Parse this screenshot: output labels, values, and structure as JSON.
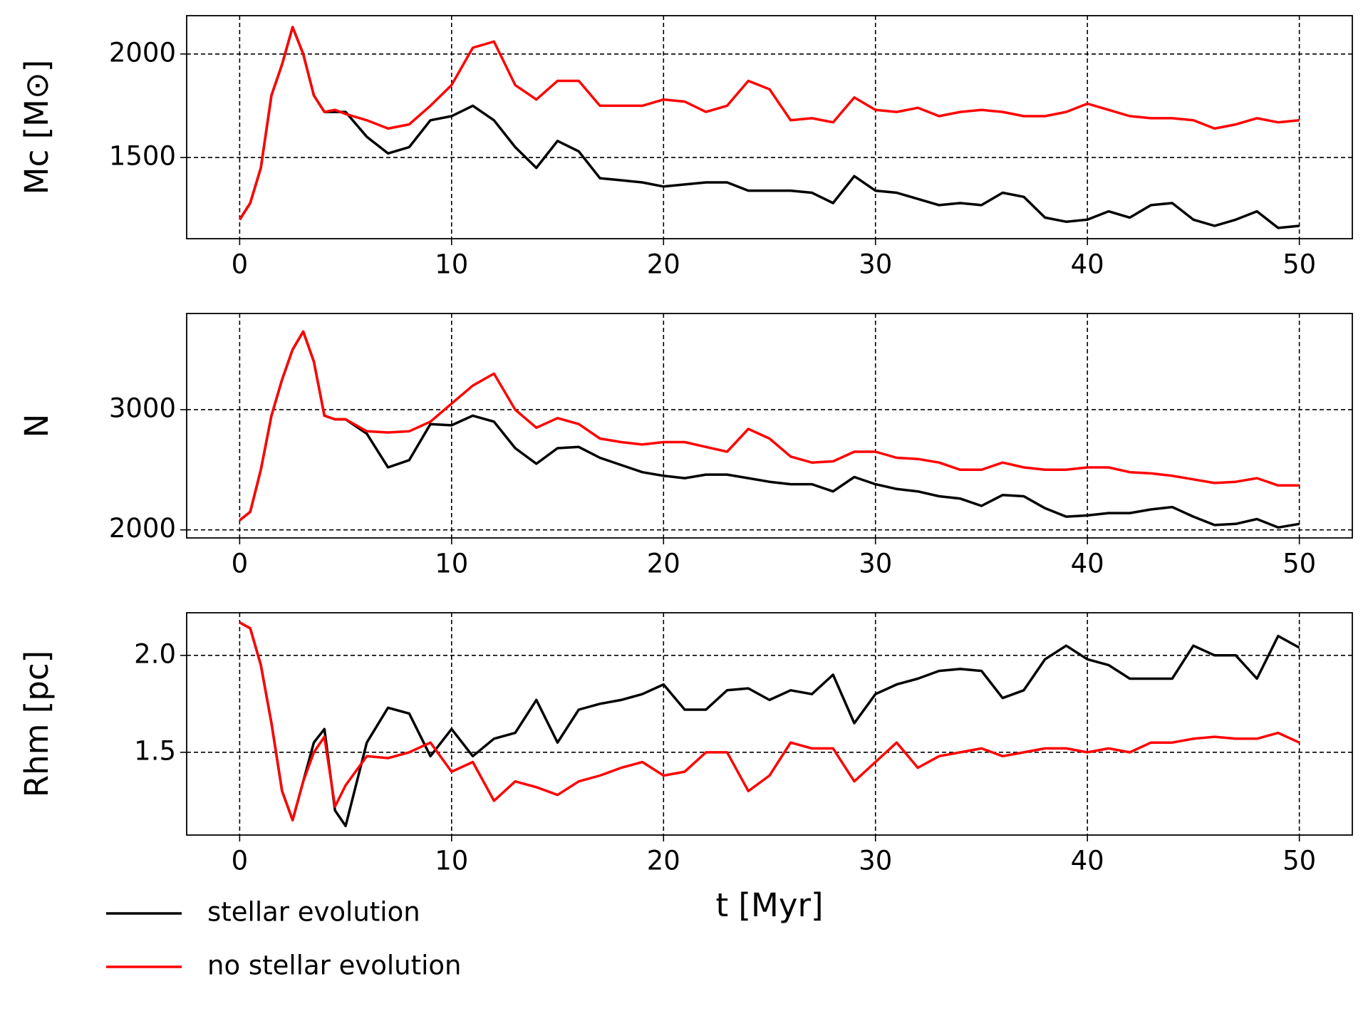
{
  "chart_data": [
    {
      "type": "line",
      "ylabel": "Mc [M⊙]",
      "x": [
        0,
        0.5,
        1,
        1.5,
        2,
        2.5,
        3,
        3.5,
        4,
        4.5,
        5,
        6,
        7,
        8,
        9,
        10,
        11,
        12,
        13,
        14,
        15,
        16,
        17,
        18,
        19,
        20,
        21,
        22,
        23,
        24,
        25,
        26,
        27,
        28,
        29,
        30,
        31,
        32,
        33,
        34,
        35,
        36,
        37,
        38,
        39,
        40,
        41,
        42,
        43,
        44,
        45,
        46,
        47,
        48,
        49,
        50
      ],
      "xlim": [
        -2.5,
        52.5
      ],
      "xticks": [
        0,
        10,
        20,
        30,
        40,
        50
      ],
      "ylim": [
        1108,
        2185
      ],
      "yticks": [
        1500,
        2000
      ],
      "grid": true,
      "series": [
        {
          "color": "#000000",
          "values": [
            1200,
            1280,
            1450,
            1800,
            1950,
            2130,
            2000,
            1800,
            1720,
            1720,
            1720,
            1600,
            1520,
            1550,
            1680,
            1700,
            1750,
            1680,
            1550,
            1450,
            1580,
            1530,
            1400,
            1390,
            1380,
            1360,
            1370,
            1380,
            1380,
            1340,
            1340,
            1340,
            1330,
            1280,
            1410,
            1340,
            1330,
            1300,
            1270,
            1280,
            1270,
            1330,
            1310,
            1210,
            1190,
            1200,
            1240,
            1210,
            1270,
            1280,
            1200,
            1170,
            1200,
            1240,
            1160,
            1170
          ]
        },
        {
          "color": "#ff0000",
          "values": [
            1200,
            1280,
            1450,
            1800,
            1950,
            2130,
            2000,
            1800,
            1720,
            1730,
            1710,
            1680,
            1640,
            1660,
            1750,
            1850,
            2030,
            2060,
            1850,
            1780,
            1870,
            1870,
            1750,
            1750,
            1750,
            1780,
            1770,
            1720,
            1750,
            1870,
            1830,
            1680,
            1690,
            1670,
            1790,
            1730,
            1720,
            1740,
            1700,
            1720,
            1730,
            1720,
            1700,
            1700,
            1720,
            1760,
            1730,
            1700,
            1690,
            1690,
            1680,
            1640,
            1660,
            1690,
            1670,
            1680
          ]
        }
      ]
    },
    {
      "type": "line",
      "ylabel": "N",
      "x": [
        0,
        0.5,
        1,
        1.5,
        2,
        2.5,
        3,
        3.5,
        4,
        4.5,
        5,
        6,
        7,
        8,
        9,
        10,
        11,
        12,
        13,
        14,
        15,
        16,
        17,
        18,
        19,
        20,
        21,
        22,
        23,
        24,
        25,
        26,
        27,
        28,
        29,
        30,
        31,
        32,
        33,
        34,
        35,
        36,
        37,
        38,
        39,
        40,
        41,
        42,
        43,
        44,
        45,
        46,
        47,
        48,
        49,
        50
      ],
      "xlim": [
        -2.5,
        52.5
      ],
      "xticks": [
        0,
        10,
        20,
        30,
        40,
        50
      ],
      "ylim": [
        1933,
        3800
      ],
      "yticks": [
        2000,
        3000
      ],
      "grid": true,
      "series": [
        {
          "color": "#000000",
          "values": [
            2080,
            2150,
            2500,
            2950,
            3250,
            3500,
            3650,
            3400,
            2950,
            2920,
            2920,
            2800,
            2520,
            2580,
            2880,
            2870,
            2950,
            2900,
            2680,
            2550,
            2680,
            2690,
            2600,
            2540,
            2480,
            2450,
            2430,
            2460,
            2460,
            2430,
            2400,
            2380,
            2380,
            2320,
            2440,
            2380,
            2340,
            2320,
            2280,
            2260,
            2200,
            2290,
            2280,
            2180,
            2110,
            2120,
            2140,
            2140,
            2170,
            2190,
            2110,
            2040,
            2050,
            2090,
            2020,
            2050
          ]
        },
        {
          "color": "#ff0000",
          "values": [
            2080,
            2150,
            2500,
            2950,
            3250,
            3500,
            3650,
            3400,
            2950,
            2920,
            2920,
            2820,
            2810,
            2820,
            2900,
            3050,
            3200,
            3300,
            3000,
            2850,
            2930,
            2880,
            2760,
            2730,
            2710,
            2730,
            2730,
            2690,
            2650,
            2840,
            2760,
            2610,
            2560,
            2570,
            2650,
            2650,
            2600,
            2590,
            2560,
            2500,
            2500,
            2560,
            2520,
            2500,
            2500,
            2520,
            2520,
            2480,
            2470,
            2450,
            2420,
            2390,
            2400,
            2430,
            2370,
            2370
          ]
        }
      ]
    },
    {
      "type": "line",
      "ylabel": "Rhm [pc]",
      "xlabel": "t [Myr]",
      "x": [
        0,
        0.5,
        1,
        1.5,
        2,
        2.5,
        3,
        3.5,
        4,
        4.5,
        5,
        6,
        7,
        8,
        9,
        10,
        11,
        12,
        13,
        14,
        15,
        16,
        17,
        18,
        19,
        20,
        21,
        22,
        23,
        24,
        25,
        26,
        27,
        28,
        29,
        30,
        31,
        32,
        33,
        34,
        35,
        36,
        37,
        38,
        39,
        40,
        41,
        42,
        43,
        44,
        45,
        46,
        47,
        48,
        49,
        50
      ],
      "xlim": [
        -2.5,
        52.5
      ],
      "xticks": [
        0,
        10,
        20,
        30,
        40,
        50
      ],
      "ylim": [
        1.073,
        2.22
      ],
      "yticks": [
        {
          "value": 1.5,
          "label": "1.5"
        },
        {
          "value": 2,
          "label": "2.0"
        }
      ],
      "grid": true,
      "legend": "below-left",
      "series": [
        {
          "name": "stellar evolution",
          "color": "#000000",
          "values": [
            2.17,
            2.14,
            1.95,
            1.65,
            1.3,
            1.15,
            1.35,
            1.55,
            1.62,
            1.2,
            1.12,
            1.55,
            1.73,
            1.7,
            1.48,
            1.62,
            1.48,
            1.57,
            1.6,
            1.77,
            1.55,
            1.72,
            1.75,
            1.77,
            1.8,
            1.85,
            1.72,
            1.72,
            1.82,
            1.83,
            1.77,
            1.82,
            1.8,
            1.9,
            1.65,
            1.8,
            1.85,
            1.88,
            1.92,
            1.93,
            1.92,
            1.78,
            1.82,
            1.98,
            2.05,
            1.98,
            1.95,
            1.88,
            1.88,
            1.88,
            2.05,
            2.0,
            2.0,
            1.88,
            2.1,
            2.04
          ]
        },
        {
          "name": "no stellar evolution",
          "color": "#ff0000",
          "values": [
            2.17,
            2.14,
            1.95,
            1.65,
            1.3,
            1.15,
            1.35,
            1.5,
            1.58,
            1.22,
            1.33,
            1.48,
            1.47,
            1.5,
            1.55,
            1.4,
            1.45,
            1.25,
            1.35,
            1.32,
            1.28,
            1.35,
            1.38,
            1.42,
            1.45,
            1.38,
            1.4,
            1.5,
            1.5,
            1.3,
            1.38,
            1.55,
            1.52,
            1.52,
            1.35,
            1.45,
            1.55,
            1.42,
            1.48,
            1.5,
            1.52,
            1.48,
            1.5,
            1.52,
            1.52,
            1.5,
            1.52,
            1.5,
            1.55,
            1.55,
            1.57,
            1.58,
            1.57,
            1.57,
            1.6,
            1.55
          ]
        }
      ]
    }
  ]
}
